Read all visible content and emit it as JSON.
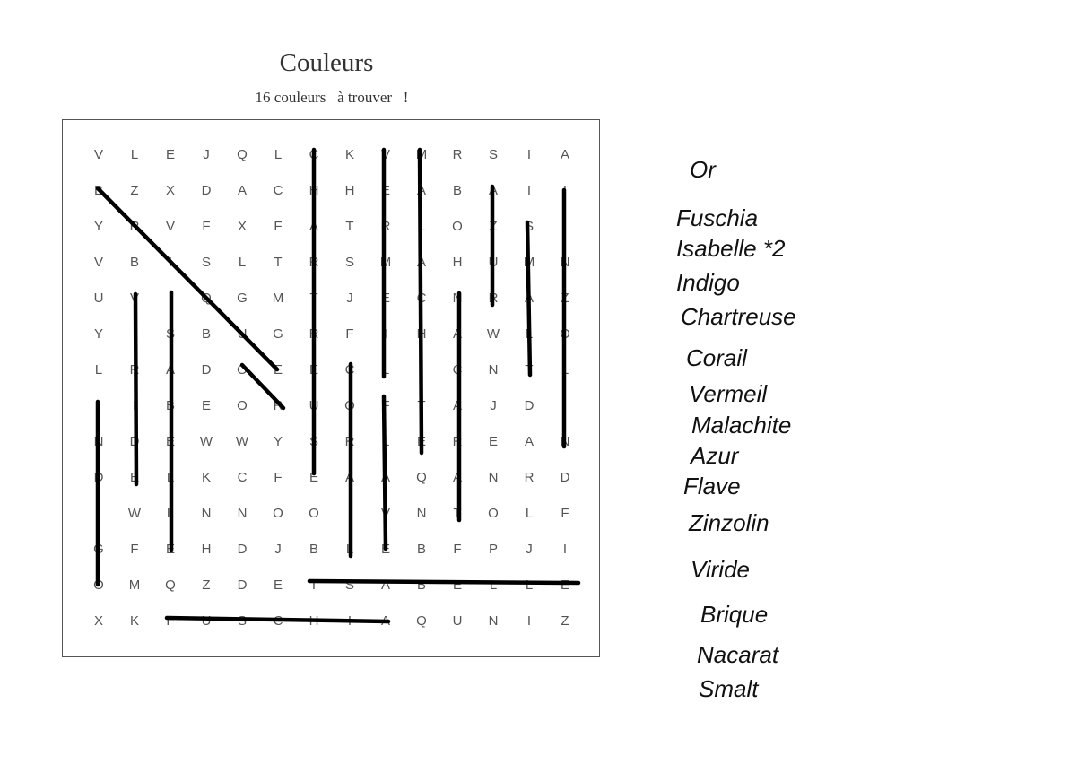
{
  "header": {
    "title": "Couleurs",
    "subtitle": "16 couleurs   à trouver   !"
  },
  "grid": {
    "rows": [
      [
        "V",
        "L",
        "E",
        "J",
        "Q",
        "L",
        "C",
        "K",
        "V",
        "M",
        "R",
        "S",
        "I",
        "A"
      ],
      [
        "B",
        "Z",
        "X",
        "D",
        "A",
        "C",
        "H",
        "H",
        "E",
        "A",
        "B",
        "A",
        "I",
        "I"
      ],
      [
        "Y",
        "R",
        "V",
        "F",
        "X",
        "F",
        "A",
        "T",
        "R",
        "L",
        "O",
        "Z",
        "S",
        "I"
      ],
      [
        "V",
        "B",
        "I",
        "S",
        "L",
        "T",
        "R",
        "S",
        "M",
        "A",
        "H",
        "U",
        "M",
        "N"
      ],
      [
        "U",
        "V",
        "I",
        "Q",
        "G",
        "M",
        "T",
        "J",
        "E",
        "C",
        "N",
        "R",
        "A",
        "Z"
      ],
      [
        "Y",
        "I",
        "S",
        "B",
        "U",
        "G",
        "R",
        "F",
        "I",
        "H",
        "A",
        "W",
        "L",
        "O"
      ],
      [
        "L",
        "R",
        "A",
        "D",
        "O",
        "E",
        "E",
        "C",
        "L",
        "I",
        "C",
        "N",
        "T",
        "L"
      ],
      [
        "I",
        "I",
        "B",
        "E",
        "O",
        "R",
        "U",
        "O",
        "F",
        "T",
        "A",
        "J",
        "D",
        "I"
      ],
      [
        "N",
        "D",
        "E",
        "W",
        "W",
        "Y",
        "S",
        "R",
        "L",
        "E",
        "R",
        "E",
        "A",
        "N"
      ],
      [
        "D",
        "E",
        "L",
        "K",
        "C",
        "F",
        "E",
        "A",
        "A",
        "Q",
        "A",
        "N",
        "R",
        "D"
      ],
      [
        "I",
        "W",
        "L",
        "N",
        "N",
        "O",
        "O",
        "I",
        "V",
        "N",
        "T",
        "O",
        "L",
        "F"
      ],
      [
        "G",
        "F",
        "E",
        "H",
        "D",
        "J",
        "B",
        "L",
        "E",
        "B",
        "F",
        "P",
        "J",
        "I"
      ],
      [
        "O",
        "M",
        "Q",
        "Z",
        "D",
        "E",
        "I",
        "S",
        "A",
        "B",
        "E",
        "L",
        "L",
        "E"
      ],
      [
        "X",
        "K",
        "F",
        "U",
        "S",
        "C",
        "H",
        "I",
        "A",
        "Q",
        "U",
        "N",
        "I",
        "Z"
      ]
    ],
    "found_count": 15
  },
  "words": [
    "Or",
    "Fuschia",
    "Isabelle *2",
    "Indigo",
    "Chartreuse",
    "Corail",
    "Vermeil",
    "Malachite",
    "Azur",
    "Flave",
    "Zinzolin",
    "Viride",
    "Brique",
    "Nacarat",
    "Smalt"
  ],
  "colors": {
    "stroke": "#000000",
    "letter": "#555555",
    "border": "#555555"
  }
}
